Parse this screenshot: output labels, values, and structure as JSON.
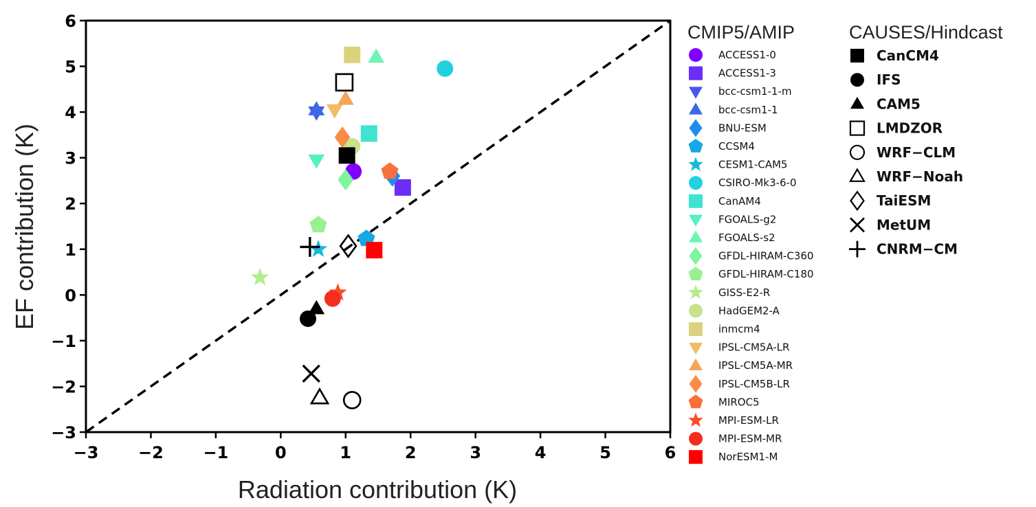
{
  "chart_data": {
    "type": "scatter",
    "xlabel": "Radiation contribution (K)",
    "ylabel": "EF contribution (K)",
    "xlim": [
      -3,
      6
    ],
    "ylim": [
      -3,
      6
    ],
    "xticks": [
      -3,
      -2,
      -1,
      0,
      1,
      2,
      3,
      4,
      5,
      6
    ],
    "yticks": [
      -3,
      -2,
      -1,
      0,
      1,
      2,
      3,
      4,
      5,
      6
    ],
    "grid": false,
    "reference_line": {
      "style": "dashed",
      "color": "#000000",
      "from": [
        -3,
        -3
      ],
      "to": [
        6,
        6
      ]
    },
    "legend_groups": [
      {
        "title": "CMIP5/AMIP",
        "placement": "right",
        "series": [
          {
            "name": "ACCESS1-0",
            "marker": "circle",
            "color": "#8000ff",
            "x": 1.12,
            "y": 2.7
          },
          {
            "name": "ACCESS1-3",
            "marker": "square",
            "color": "#6a2ef7",
            "x": 1.88,
            "y": 2.35
          },
          {
            "name": "bcc-csm1-1-m",
            "marker": "triangle-down",
            "color": "#4b55ee",
            "x": 0.55,
            "y": 4.0
          },
          {
            "name": "bcc-csm1-1",
            "marker": "triangle-up",
            "color": "#3b6ae8",
            "x": 0.55,
            "y": 4.05
          },
          {
            "name": "BNU-ESM",
            "marker": "diamond",
            "color": "#1f8ded",
            "x": 1.72,
            "y": 2.6
          },
          {
            "name": "CCSM4",
            "marker": "pentagon",
            "color": "#14a9e6",
            "x": 1.32,
            "y": 1.23
          },
          {
            "name": "CESM1-CAM5",
            "marker": "star",
            "color": "#18b8dc",
            "x": 0.58,
            "y": 1.0
          },
          {
            "name": "CSIRO-Mk3-6-0",
            "marker": "circle",
            "color": "#22d1e0",
            "x": 2.53,
            "y": 4.95
          },
          {
            "name": "CanAM4",
            "marker": "square",
            "color": "#3ee4cf",
            "x": 1.36,
            "y": 3.53
          },
          {
            "name": "FGOALS-g2",
            "marker": "triangle-down",
            "color": "#55f0c4",
            "x": 0.55,
            "y": 2.95
          },
          {
            "name": "FGOALS-s2",
            "marker": "triangle-up",
            "color": "#6cf5b4",
            "x": 1.47,
            "y": 5.2
          },
          {
            "name": "GFDL-HIRAM-C360",
            "marker": "diamond",
            "color": "#7ff59f",
            "x": 1.0,
            "y": 2.52
          },
          {
            "name": "GFDL-HIRAM-C180",
            "marker": "pentagon",
            "color": "#98f190",
            "x": 0.58,
            "y": 1.53
          },
          {
            "name": "GISS-E2-R",
            "marker": "star",
            "color": "#b2ec8d",
            "x": -0.32,
            "y": 0.38
          },
          {
            "name": "HadGEM2-A",
            "marker": "circle",
            "color": "#c9e28b",
            "x": 1.1,
            "y": 3.25
          },
          {
            "name": "inmcm4",
            "marker": "square",
            "color": "#dcd27d",
            "x": 1.1,
            "y": 5.25
          },
          {
            "name": "IPSL-CM5A-LR",
            "marker": "triangle-down",
            "color": "#f2bb6c",
            "x": 0.83,
            "y": 4.05
          },
          {
            "name": "IPSL-CM5A-MR",
            "marker": "triangle-up",
            "color": "#f8a25a",
            "x": 1.0,
            "y": 4.28
          },
          {
            "name": "IPSL-CM5B-LR",
            "marker": "diamond",
            "color": "#fb8b47",
            "x": 0.95,
            "y": 3.45
          },
          {
            "name": "MIROC5",
            "marker": "pentagon",
            "color": "#f9703c",
            "x": 1.68,
            "y": 2.7
          },
          {
            "name": "MPI-ESM-LR",
            "marker": "star",
            "color": "#f64d2a",
            "x": 0.88,
            "y": 0.05
          },
          {
            "name": "MPI-ESM-MR",
            "marker": "circle",
            "color": "#f62d1d",
            "x": 0.8,
            "y": -0.08
          },
          {
            "name": "NorESM1-M",
            "marker": "square",
            "color": "#ff0000",
            "x": 1.44,
            "y": 0.98
          }
        ]
      },
      {
        "title": "CAUSES/Hindcast",
        "placement": "right",
        "series": [
          {
            "name": "CanCM4",
            "marker": "square",
            "color": "#000000",
            "fill": true,
            "x": 1.02,
            "y": 3.05
          },
          {
            "name": "IFS",
            "marker": "circle",
            "color": "#000000",
            "fill": true,
            "x": 0.42,
            "y": -0.52
          },
          {
            "name": "CAM5",
            "marker": "triangle-up",
            "color": "#000000",
            "fill": true,
            "x": 0.55,
            "y": -0.3
          },
          {
            "name": "LMDZOR",
            "marker": "square",
            "color": "#000000",
            "fill": false,
            "x": 0.98,
            "y": 4.65
          },
          {
            "name": "WRF−CLM",
            "marker": "circle",
            "color": "#000000",
            "fill": false,
            "x": 1.1,
            "y": -2.3
          },
          {
            "name": "WRF−Noah",
            "marker": "triangle-up",
            "color": "#000000",
            "fill": false,
            "x": 0.6,
            "y": -2.25
          },
          {
            "name": "TaiESM",
            "marker": "diamond",
            "color": "#000000",
            "fill": false,
            "x": 1.04,
            "y": 1.07
          },
          {
            "name": "MetUM",
            "marker": "x",
            "color": "#000000",
            "fill": false,
            "x": 0.47,
            "y": -1.72
          },
          {
            "name": "CNRM−CM",
            "marker": "plus",
            "color": "#000000",
            "fill": false,
            "x": 0.45,
            "y": 1.05
          }
        ]
      }
    ]
  }
}
